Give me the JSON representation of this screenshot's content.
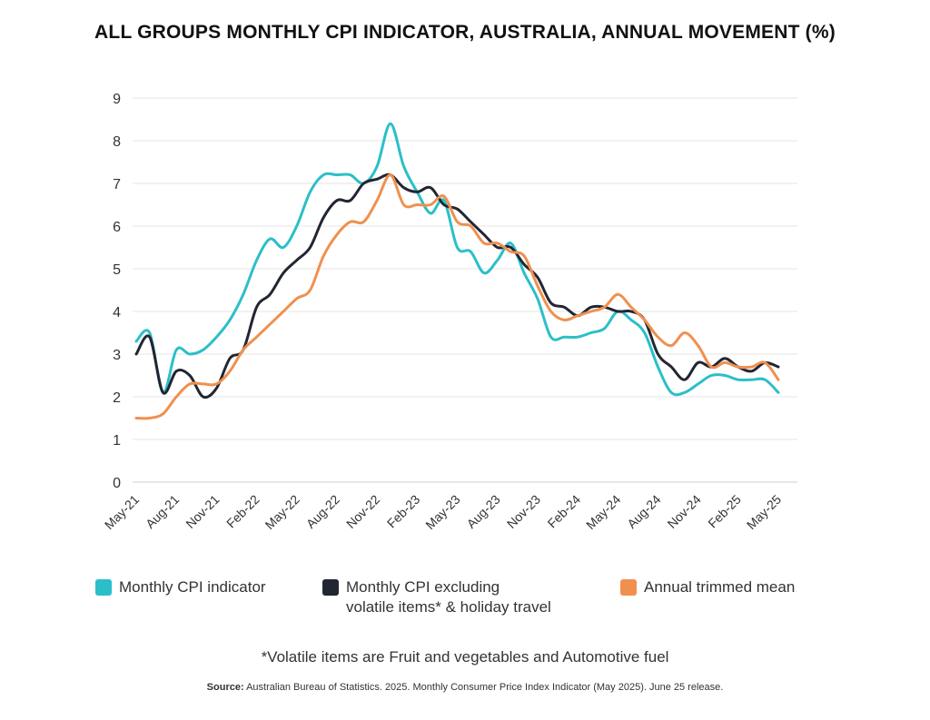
{
  "chart_data": {
    "type": "line",
    "title": "ALL GROUPS MONTHLY CPI INDICATOR, AUSTRALIA, ANNUAL MOVEMENT (%)",
    "xlabel": "",
    "ylabel": "",
    "ylim": [
      0,
      9
    ],
    "yticks": [
      "0",
      "1",
      "2",
      "3",
      "4",
      "5",
      "6",
      "7",
      "8",
      "9"
    ],
    "grid": true,
    "legend_position": "bottom",
    "x_tick_labels": [
      "May-21",
      "Aug-21",
      "Nov-21",
      "Feb-22",
      "May-22",
      "Aug-22",
      "Nov-22",
      "Feb-23",
      "May-23",
      "Aug-23",
      "Nov-23",
      "Feb-24",
      "May-24",
      "Aug-24",
      "Nov-24",
      "Feb-25",
      "May-25"
    ],
    "x_start": "May-21",
    "months": 49,
    "series": [
      {
        "name": "Monthly CPI indicator",
        "color": "#2bbfc9",
        "values": [
          3.3,
          3.5,
          2.1,
          3.1,
          3.0,
          3.1,
          3.4,
          3.8,
          4.4,
          5.2,
          5.7,
          5.5,
          6.0,
          6.8,
          7.2,
          7.2,
          7.2,
          7.0,
          7.4,
          8.4,
          7.4,
          6.8,
          6.3,
          6.6,
          5.5,
          5.4,
          4.9,
          5.2,
          5.6,
          4.9,
          4.3,
          3.4,
          3.4,
          3.4,
          3.5,
          3.6,
          4.0,
          3.8,
          3.5,
          2.7,
          2.1,
          2.1,
          2.3,
          2.5,
          2.5,
          2.4,
          2.4,
          2.4,
          2.1
        ]
      },
      {
        "name": "Monthly CPI excluding volatile items* & holiday travel",
        "color": "#222633",
        "values": [
          3.0,
          3.4,
          2.1,
          2.6,
          2.5,
          2.0,
          2.2,
          2.9,
          3.1,
          4.1,
          4.4,
          4.9,
          5.2,
          5.5,
          6.2,
          6.6,
          6.6,
          7.0,
          7.1,
          7.2,
          6.9,
          6.8,
          6.9,
          6.5,
          6.4,
          6.1,
          5.8,
          5.5,
          5.5,
          5.1,
          4.8,
          4.2,
          4.1,
          3.9,
          4.1,
          4.1,
          4.0,
          4.0,
          3.8,
          3.0,
          2.7,
          2.4,
          2.8,
          2.7,
          2.9,
          2.7,
          2.6,
          2.8,
          2.7
        ]
      },
      {
        "name": "Annual trimmed mean",
        "color": "#f0904f",
        "values": [
          1.5,
          1.5,
          1.6,
          2.0,
          2.3,
          2.3,
          2.3,
          2.6,
          3.1,
          3.4,
          3.7,
          4.0,
          4.3,
          4.5,
          5.3,
          5.8,
          6.1,
          6.1,
          6.6,
          7.2,
          6.5,
          6.5,
          6.5,
          6.7,
          6.1,
          6.0,
          5.6,
          5.6,
          5.4,
          5.3,
          4.6,
          4.0,
          3.8,
          3.9,
          4.0,
          4.1,
          4.4,
          4.1,
          3.8,
          3.4,
          3.2,
          3.5,
          3.2,
          2.7,
          2.8,
          2.7,
          2.7,
          2.8,
          2.4
        ]
      }
    ]
  },
  "legend": {
    "item1": "Monthly CPI indicator",
    "item2_line1": "Monthly CPI excluding",
    "item2_line2": "volatile items* & holiday travel",
    "item3": "Annual trimmed mean"
  },
  "footnote": "*Volatile items are Fruit and vegetables and Automotive fuel",
  "source": {
    "label": "Source:",
    "text": " Australian Bureau of Statistics. 2025. Monthly Consumer Price Index Indicator (May 2025). June 25 release."
  }
}
